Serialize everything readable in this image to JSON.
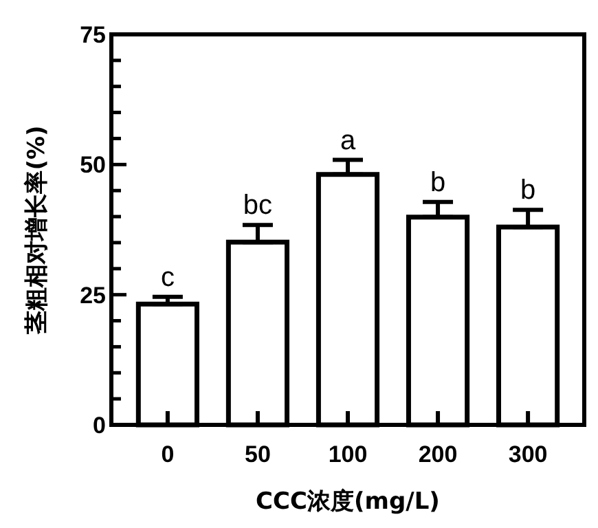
{
  "chart_data": {
    "type": "bar",
    "xlabel": "CCC浓度(mg/L)",
    "ylabel": "茎粗相对增长率(%)",
    "categories": [
      "0",
      "50",
      "100",
      "200",
      "300"
    ],
    "values": [
      23.2,
      35.1,
      48.1,
      39.9,
      38.0
    ],
    "errors": [
      [
        23.2,
        24.6
      ],
      [
        35.1,
        38.4
      ],
      [
        48.1,
        50.9
      ],
      [
        39.9,
        42.8
      ],
      [
        38.0,
        41.3
      ]
    ],
    "color": "#ffffff",
    "ylim": [
      0,
      75
    ],
    "yticks": [
      0,
      {
        "value": 5,
        "label": null
      },
      {
        "value": 10,
        "label": null
      },
      {
        "value": 15,
        "label": null
      },
      {
        "value": 20,
        "label": null
      },
      25,
      {
        "value": 30,
        "label": null
      },
      {
        "value": 35,
        "label": null
      },
      {
        "value": 40,
        "label": null
      },
      {
        "value": 45,
        "label": null
      },
      50,
      {
        "value": 55,
        "label": null
      },
      {
        "value": 60,
        "label": null
      },
      {
        "value": 65,
        "label": null
      },
      {
        "value": 70,
        "label": null
      },
      75
    ],
    "annotations": [
      {
        "text": "c",
        "x": "0",
        "y": 24.6
      },
      {
        "text": "bc",
        "x": "50",
        "y": 38.4
      },
      {
        "text": "a",
        "x": "100",
        "y": 50.9
      },
      {
        "text": "b",
        "x": "200",
        "y": 42.8
      },
      {
        "text": "b",
        "x": "300",
        "y": 41.3
      }
    ],
    "grid": false
  }
}
